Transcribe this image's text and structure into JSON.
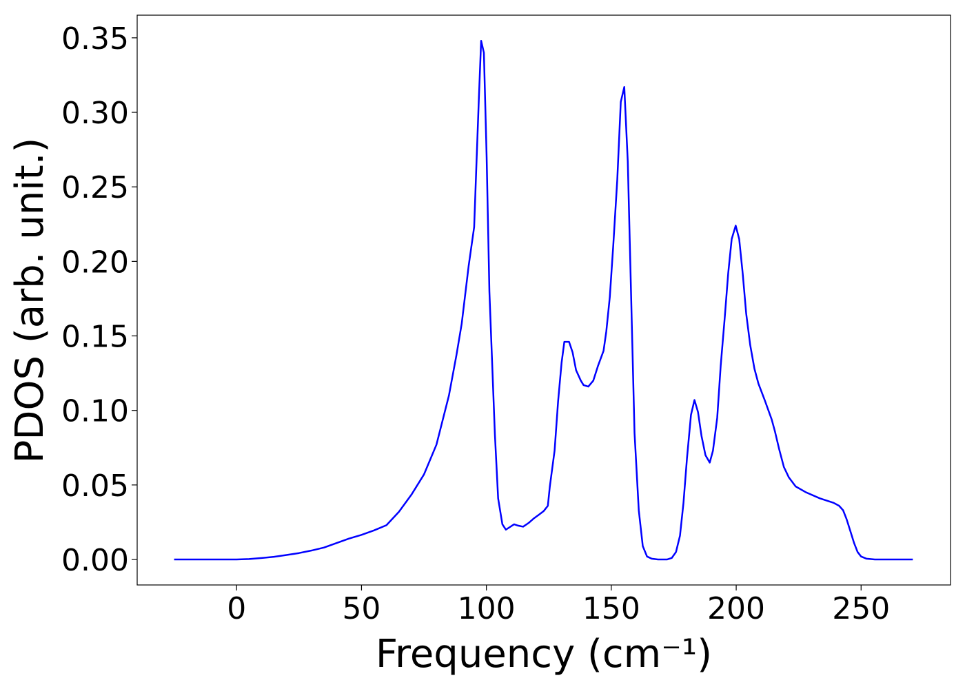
{
  "chart_data": {
    "type": "line",
    "xlabel": "Frequency (cm⁻¹)",
    "ylabel": "PDOS (arb. unit.)",
    "xlim": [
      -39.8,
      285.8
    ],
    "ylim": [
      -0.0171,
      0.3652
    ],
    "xticks": [
      0,
      50,
      100,
      150,
      200,
      250
    ],
    "yticks": [
      {
        "value": 0,
        "label": "0.00"
      },
      {
        "value": 0.05,
        "label": "0.05"
      },
      {
        "value": 0.1,
        "label": "0.10"
      },
      {
        "value": 0.15,
        "label": "0.15"
      },
      {
        "value": 0.2,
        "label": "0.20"
      },
      {
        "value": 0.25,
        "label": "0.25"
      },
      {
        "value": 0.3,
        "label": "0.30"
      },
      {
        "value": 0.35,
        "label": "0.35"
      }
    ],
    "grid": false,
    "series": [
      {
        "color": "#0000ff",
        "x": [
          -25,
          0,
          5,
          10,
          15,
          20,
          25,
          30,
          35,
          40,
          45,
          50,
          55,
          60,
          65,
          70,
          75,
          80,
          85,
          88,
          90.1,
          92.9,
          95.1,
          95.9,
          97.0,
          97.9,
          99.0,
          100.1,
          101.2,
          103.4,
          104.7,
          106.4,
          107.8,
          111.1,
          112.7,
          114.7,
          116.9,
          119.1,
          121.0,
          122.9,
          124.6,
          125.4,
          127.3,
          128.7,
          130.1,
          131.2,
          133.1,
          134.5,
          135.9,
          137.8,
          138.9,
          140.8,
          142.8,
          144.7,
          146.9,
          148.0,
          149.4,
          150.8,
          152.4,
          153.8,
          155.2,
          156.6,
          159.3,
          161.0,
          162.6,
          164.3,
          166.2,
          168.7,
          172.3,
          174.2,
          175.9,
          177.5,
          178.9,
          180.3,
          181.9,
          183.3,
          184.7,
          186.1,
          187.7,
          189.4,
          190.7,
          192.4,
          193.8,
          195.4,
          196.8,
          198.2,
          199.8,
          201.2,
          202.6,
          204.0,
          205.6,
          207.3,
          208.9,
          211.4,
          214.2,
          215.5,
          217.2,
          219.1,
          221.1,
          223.8,
          228,
          233.5,
          239,
          241.2,
          242.8,
          244.2,
          245.9,
          247.2,
          248.6,
          250,
          252.2,
          255.5,
          270.7
        ],
        "values": [
          0,
          0,
          0.0003,
          0.001,
          0.0018,
          0.003,
          0.0043,
          0.006,
          0.008,
          0.011,
          0.014,
          0.0165,
          0.0195,
          0.023,
          0.032,
          0.0435,
          0.057,
          0.077,
          0.11,
          0.137,
          0.158,
          0.197,
          0.223,
          0.26,
          0.31,
          0.348,
          0.34,
          0.27,
          0.18,
          0.084,
          0.041,
          0.0236,
          0.02,
          0.0236,
          0.0227,
          0.022,
          0.0245,
          0.0277,
          0.03,
          0.0324,
          0.036,
          0.049,
          0.073,
          0.106,
          0.132,
          0.146,
          0.146,
          0.139,
          0.127,
          0.12,
          0.117,
          0.116,
          0.12,
          0.13,
          0.14,
          0.153,
          0.176,
          0.211,
          0.255,
          0.307,
          0.317,
          0.267,
          0.085,
          0.033,
          0.009,
          0.002,
          0.0005,
          0,
          0,
          0.001,
          0.005,
          0.016,
          0.038,
          0.068,
          0.097,
          0.107,
          0.099,
          0.083,
          0.07,
          0.065,
          0.073,
          0.095,
          0.13,
          0.162,
          0.192,
          0.215,
          0.224,
          0.215,
          0.192,
          0.165,
          0.144,
          0.128,
          0.118,
          0.107,
          0.094,
          0.086,
          0.074,
          0.062,
          0.055,
          0.049,
          0.045,
          0.041,
          0.038,
          0.036,
          0.033,
          0.027,
          0.018,
          0.011,
          0.005,
          0.002,
          0.0005,
          0,
          0
        ]
      }
    ]
  }
}
